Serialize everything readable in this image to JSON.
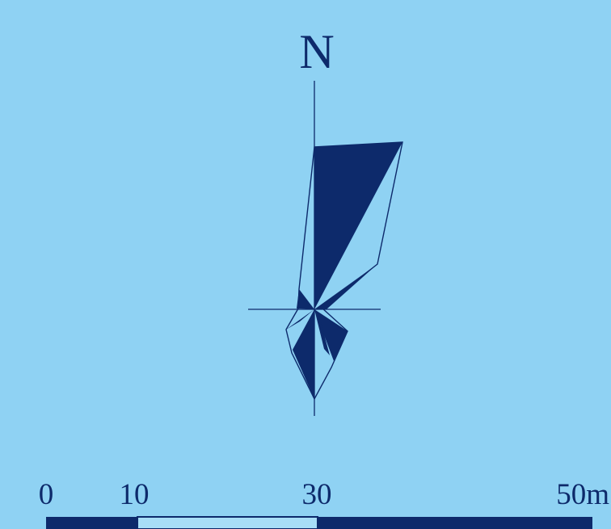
{
  "north_arrow": {
    "label": "N"
  },
  "scale_bar": {
    "labels": [
      "0",
      "10",
      "30",
      "50m"
    ]
  },
  "colors": {
    "background": "#8fd2f3",
    "ink": "#0d2a6b",
    "light_segment": "#a8def7"
  }
}
